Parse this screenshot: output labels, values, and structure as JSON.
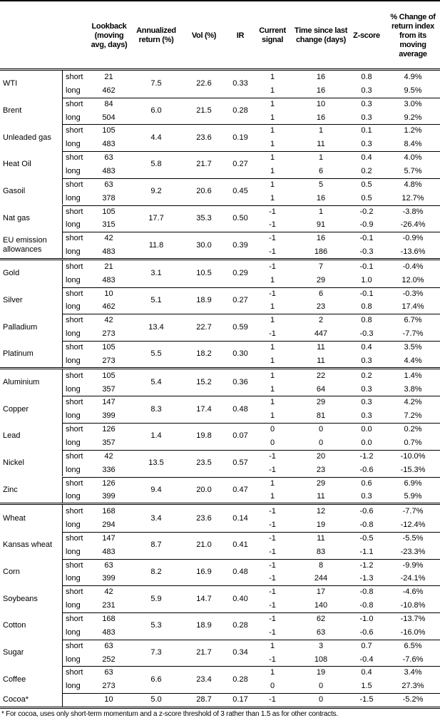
{
  "headers": {
    "lookback": "Lookback (moving avg, days)",
    "ann_return": "Annualized return (%)",
    "vol": "Vol (%)",
    "ir": "IR",
    "signal": "Current signal",
    "time_since": "Time since last change (days)",
    "zscore": "Z-score",
    "pct_change": "% Change of return index from its moving average"
  },
  "groups": [
    {
      "rows": [
        {
          "name": "WTI",
          "ret": "7.5",
          "vol": "22.6",
          "ir": "0.33",
          "sub": [
            {
              "type": "short",
              "lb": "21",
              "sig": "1",
              "t": "16",
              "z": "0.8",
              "pct": "4.9%"
            },
            {
              "type": "long",
              "lb": "462",
              "sig": "1",
              "t": "16",
              "z": "0.3",
              "pct": "9.5%"
            }
          ]
        },
        {
          "name": "Brent",
          "ret": "6.0",
          "vol": "21.5",
          "ir": "0.28",
          "sub": [
            {
              "type": "short",
              "lb": "84",
              "sig": "1",
              "t": "10",
              "z": "0.3",
              "pct": "3.0%"
            },
            {
              "type": "long",
              "lb": "504",
              "sig": "1",
              "t": "16",
              "z": "0.3",
              "pct": "9.2%"
            }
          ]
        },
        {
          "name": "Unleaded gas",
          "ret": "4.4",
          "vol": "23.6",
          "ir": "0.19",
          "sub": [
            {
              "type": "short",
              "lb": "105",
              "sig": "1",
              "t": "1",
              "z": "0.1",
              "pct": "1.2%"
            },
            {
              "type": "long",
              "lb": "483",
              "sig": "1",
              "t": "11",
              "z": "0.3",
              "pct": "8.4%"
            }
          ]
        },
        {
          "name": "Heat Oil",
          "ret": "5.8",
          "vol": "21.7",
          "ir": "0.27",
          "sub": [
            {
              "type": "short",
              "lb": "63",
              "sig": "1",
              "t": "1",
              "z": "0.4",
              "pct": "4.0%"
            },
            {
              "type": "long",
              "lb": "483",
              "sig": "1",
              "t": "6",
              "z": "0.2",
              "pct": "5.7%"
            }
          ]
        },
        {
          "name": "Gasoil",
          "ret": "9.2",
          "vol": "20.6",
          "ir": "0.45",
          "sub": [
            {
              "type": "short",
              "lb": "63",
              "sig": "1",
              "t": "5",
              "z": "0.5",
              "pct": "4.8%"
            },
            {
              "type": "long",
              "lb": "378",
              "sig": "1",
              "t": "16",
              "z": "0.5",
              "pct": "12.7%"
            }
          ]
        },
        {
          "name": "Nat gas",
          "ret": "17.7",
          "vol": "35.3",
          "ir": "0.50",
          "sub": [
            {
              "type": "short",
              "lb": "105",
              "sig": "-1",
              "t": "1",
              "z": "-0.2",
              "pct": "-3.8%"
            },
            {
              "type": "long",
              "lb": "315",
              "sig": "-1",
              "t": "91",
              "z": "-0.9",
              "pct": "-26.4%"
            }
          ]
        },
        {
          "name": "EU emission allowances",
          "ret": "11.8",
          "vol": "30.0",
          "ir": "0.39",
          "sub": [
            {
              "type": "short",
              "lb": "42",
              "sig": "-1",
              "t": "16",
              "z": "-0.1",
              "pct": "-0.9%"
            },
            {
              "type": "long",
              "lb": "483",
              "sig": "-1",
              "t": "186",
              "z": "-0.3",
              "pct": "-13.6%"
            }
          ]
        }
      ]
    },
    {
      "rows": [
        {
          "name": "Gold",
          "ret": "3.1",
          "vol": "10.5",
          "ir": "0.29",
          "sub": [
            {
              "type": "short",
              "lb": "21",
              "sig": "-1",
              "t": "7",
              "z": "-0.1",
              "pct": "-0.4%"
            },
            {
              "type": "long",
              "lb": "483",
              "sig": "1",
              "t": "29",
              "z": "1.0",
              "pct": "12.0%"
            }
          ]
        },
        {
          "name": "Silver",
          "ret": "5.1",
          "vol": "18.9",
          "ir": "0.27",
          "sub": [
            {
              "type": "short",
              "lb": "10",
              "sig": "-1",
              "t": "6",
              "z": "-0.1",
              "pct": "-0.3%"
            },
            {
              "type": "long",
              "lb": "462",
              "sig": "1",
              "t": "23",
              "z": "0.8",
              "pct": "17.4%"
            }
          ]
        },
        {
          "name": "Palladium",
          "ret": "13.4",
          "vol": "22.7",
          "ir": "0.59",
          "sub": [
            {
              "type": "short",
              "lb": "42",
              "sig": "1",
              "t": "2",
              "z": "0.8",
              "pct": "6.7%"
            },
            {
              "type": "long",
              "lb": "273",
              "sig": "-1",
              "t": "447",
              "z": "-0.3",
              "pct": "-7.7%"
            }
          ]
        },
        {
          "name": "Platinum",
          "ret": "5.5",
          "vol": "18.2",
          "ir": "0.30",
          "sub": [
            {
              "type": "short",
              "lb": "105",
              "sig": "1",
              "t": "11",
              "z": "0.4",
              "pct": "3.5%"
            },
            {
              "type": "long",
              "lb": "273",
              "sig": "1",
              "t": "11",
              "z": "0.3",
              "pct": "4.4%"
            }
          ]
        }
      ]
    },
    {
      "rows": [
        {
          "name": "Aluminium",
          "ret": "5.4",
          "vol": "15.2",
          "ir": "0.36",
          "sub": [
            {
              "type": "short",
              "lb": "105",
              "sig": "1",
              "t": "22",
              "z": "0.2",
              "pct": "1.4%"
            },
            {
              "type": "long",
              "lb": "357",
              "sig": "1",
              "t": "64",
              "z": "0.3",
              "pct": "3.8%"
            }
          ]
        },
        {
          "name": "Copper",
          "ret": "8.3",
          "vol": "17.4",
          "ir": "0.48",
          "sub": [
            {
              "type": "short",
              "lb": "147",
              "sig": "1",
              "t": "29",
              "z": "0.3",
              "pct": "4.2%"
            },
            {
              "type": "long",
              "lb": "399",
              "sig": "1",
              "t": "81",
              "z": "0.3",
              "pct": "7.2%"
            }
          ]
        },
        {
          "name": "Lead",
          "ret": "1.4",
          "vol": "19.8",
          "ir": "0.07",
          "sub": [
            {
              "type": "short",
              "lb": "126",
              "sig": "0",
              "t": "0",
              "z": "0.0",
              "pct": "0.2%"
            },
            {
              "type": "long",
              "lb": "357",
              "sig": "0",
              "t": "0",
              "z": "0.0",
              "pct": "0.7%"
            }
          ]
        },
        {
          "name": "Nickel",
          "ret": "13.5",
          "vol": "23.5",
          "ir": "0.57",
          "sub": [
            {
              "type": "short",
              "lb": "42",
              "sig": "-1",
              "t": "20",
              "z": "-1.2",
              "pct": "-10.0%"
            },
            {
              "type": "long",
              "lb": "336",
              "sig": "-1",
              "t": "23",
              "z": "-0.6",
              "pct": "-15.3%"
            }
          ]
        },
        {
          "name": "Zinc",
          "ret": "9.4",
          "vol": "20.0",
          "ir": "0.47",
          "sub": [
            {
              "type": "short",
              "lb": "126",
              "sig": "1",
              "t": "29",
              "z": "0.6",
              "pct": "6.9%"
            },
            {
              "type": "long",
              "lb": "399",
              "sig": "1",
              "t": "11",
              "z": "0.3",
              "pct": "5.9%"
            }
          ]
        }
      ]
    },
    {
      "rows": [
        {
          "name": "Wheat",
          "ret": "3.4",
          "vol": "23.6",
          "ir": "0.14",
          "sub": [
            {
              "type": "short",
              "lb": "168",
              "sig": "-1",
              "t": "12",
              "z": "-0.6",
              "pct": "-7.7%"
            },
            {
              "type": "long",
              "lb": "294",
              "sig": "-1",
              "t": "19",
              "z": "-0.8",
              "pct": "-12.4%"
            }
          ]
        },
        {
          "name": "Kansas wheat",
          "ret": "8.7",
          "vol": "21.0",
          "ir": "0.41",
          "sub": [
            {
              "type": "short",
              "lb": "147",
              "sig": "-1",
              "t": "11",
              "z": "-0.5",
              "pct": "-5.5%"
            },
            {
              "type": "long",
              "lb": "483",
              "sig": "-1",
              "t": "83",
              "z": "-1.1",
              "pct": "-23.3%"
            }
          ]
        },
        {
          "name": "Corn",
          "ret": "8.2",
          "vol": "16.9",
          "ir": "0.48",
          "sub": [
            {
              "type": "short",
              "lb": "63",
              "sig": "-1",
              "t": "8",
              "z": "-1.2",
              "pct": "-9.9%"
            },
            {
              "type": "long",
              "lb": "399",
              "sig": "-1",
              "t": "244",
              "z": "-1.3",
              "pct": "-24.1%"
            }
          ]
        },
        {
          "name": "Soybeans",
          "ret": "5.9",
          "vol": "14.7",
          "ir": "0.40",
          "sub": [
            {
              "type": "short",
              "lb": "42",
              "sig": "-1",
              "t": "17",
              "z": "-0.8",
              "pct": "-4.6%"
            },
            {
              "type": "long",
              "lb": "231",
              "sig": "-1",
              "t": "140",
              "z": "-0.8",
              "pct": "-10.8%"
            }
          ]
        },
        {
          "name": "Cotton",
          "ret": "5.3",
          "vol": "18.9",
          "ir": "0.28",
          "sub": [
            {
              "type": "short",
              "lb": "168",
              "sig": "-1",
              "t": "62",
              "z": "-1.0",
              "pct": "-13.7%"
            },
            {
              "type": "long",
              "lb": "483",
              "sig": "-1",
              "t": "63",
              "z": "-0.6",
              "pct": "-16.0%"
            }
          ]
        },
        {
          "name": "Sugar",
          "ret": "7.3",
          "vol": "21.7",
          "ir": "0.34",
          "sub": [
            {
              "type": "short",
              "lb": "63",
              "sig": "1",
              "t": "3",
              "z": "0.7",
              "pct": "6.5%"
            },
            {
              "type": "long",
              "lb": "252",
              "sig": "-1",
              "t": "108",
              "z": "-0.4",
              "pct": "-7.6%"
            }
          ]
        },
        {
          "name": "Coffee",
          "ret": "6.6",
          "vol": "23.4",
          "ir": "0.28",
          "sub": [
            {
              "type": "short",
              "lb": "63",
              "sig": "1",
              "t": "19",
              "z": "0.4",
              "pct": "3.4%"
            },
            {
              "type": "long",
              "lb": "273",
              "sig": "0",
              "t": "0",
              "z": "1.5",
              "pct": "27.3%"
            }
          ]
        },
        {
          "name": "Cocoa*",
          "ret": "5.0",
          "vol": "28.7",
          "ir": "0.17",
          "sub": [
            {
              "type": "",
              "lb": "10",
              "sig": "-1",
              "t": "0",
              "z": "-1.5",
              "pct": "-5.2%"
            }
          ]
        }
      ]
    }
  ],
  "footnote": "* For cocoa, uses only short-term momentum and a z-score threshold of 3 rather than 1.5 as for other contracts."
}
